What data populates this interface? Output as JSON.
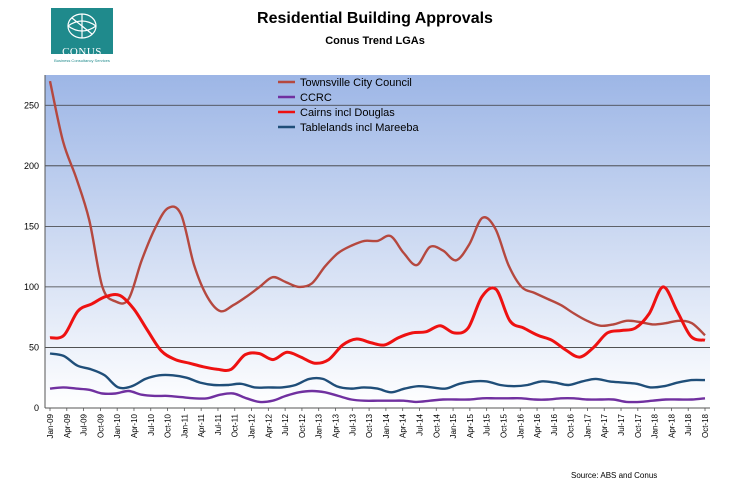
{
  "logo": {
    "text": "CONUS",
    "tagline": "Business Consultancy Services",
    "color": "#1f8a8c"
  },
  "chart_data": {
    "type": "line",
    "title": "Residential Building Approvals",
    "subtitle": "Conus Trend LGAs",
    "source": "Source: ABS and Conus",
    "ylim": [
      0,
      275
    ],
    "yticks": [
      0,
      50,
      100,
      150,
      200,
      250
    ],
    "grid": true,
    "legend_position": "top-center",
    "x_tick_labels": [
      "Jan-09",
      "Apr-09",
      "Jul-09",
      "Oct-09",
      "Jan-10",
      "Apr-10",
      "Jul-10",
      "Oct-10",
      "Jan-11",
      "Apr-11",
      "Jul-11",
      "Oct-11",
      "Jan-12",
      "Apr-12",
      "Jul-12",
      "Oct-12",
      "Jan-13",
      "Apr-13",
      "Jul-13",
      "Oct-13",
      "Jan-14",
      "Apr-14",
      "Jul-14",
      "Oct-14",
      "Jan-15",
      "Apr-15",
      "Jul-15",
      "Oct-15",
      "Jan-16",
      "Apr-16",
      "Jul-16",
      "Oct-16",
      "Jan-17",
      "Apr-17",
      "Jul-17",
      "Oct-17",
      "Jan-18",
      "Apr-18",
      "Jul-18",
      "Oct-18"
    ],
    "series": [
      {
        "name": "Townsville City Council",
        "color": "#b5483f",
        "values": [
          270,
          220,
          190,
          155,
          100,
          88,
          90,
          122,
          148,
          165,
          160,
          118,
          92,
          80,
          85,
          92,
          100,
          108,
          104,
          100,
          103,
          117,
          128,
          134,
          138,
          138,
          142,
          128,
          118,
          133,
          130,
          122,
          135,
          157,
          148,
          118,
          100,
          95,
          90,
          85,
          78,
          72,
          68,
          69,
          72,
          71,
          69,
          70,
          72,
          70,
          60
        ]
      },
      {
        "name": "CCRC",
        "color": "#7030a0",
        "values": [
          16,
          17,
          16,
          15,
          12,
          12,
          14,
          11,
          10,
          10,
          9,
          8,
          8,
          11,
          12,
          8,
          5,
          6,
          10,
          13,
          14,
          13,
          10,
          7,
          6,
          6,
          6,
          6,
          5,
          6,
          7,
          7,
          7,
          8,
          8,
          8,
          8,
          7,
          7,
          8,
          8,
          7,
          7,
          7,
          5,
          5,
          6,
          7,
          7,
          7,
          8
        ]
      },
      {
        "name": "Cairns incl Douglas",
        "color": "#ee1111",
        "values": [
          58,
          60,
          80,
          86,
          92,
          93,
          82,
          64,
          47,
          40,
          37,
          34,
          32,
          32,
          44,
          45,
          40,
          46,
          42,
          37,
          40,
          52,
          57,
          54,
          52,
          58,
          62,
          63,
          68,
          62,
          66,
          92,
          98,
          72,
          66,
          60,
          56,
          48,
          42,
          50,
          62,
          64,
          66,
          78,
          100,
          80,
          59,
          56
        ]
      },
      {
        "name": "Tablelands incl Mareeba",
        "color": "#1f4e79",
        "values": [
          45,
          43,
          35,
          32,
          27,
          17,
          18,
          24,
          27,
          27,
          25,
          21,
          19,
          19,
          20,
          17,
          17,
          17,
          19,
          24,
          24,
          18,
          16,
          17,
          16,
          13,
          16,
          18,
          17,
          16,
          20,
          22,
          22,
          19,
          18,
          19,
          22,
          21,
          19,
          22,
          24,
          22,
          21,
          20,
          17,
          18,
          21,
          23,
          23
        ]
      }
    ]
  }
}
